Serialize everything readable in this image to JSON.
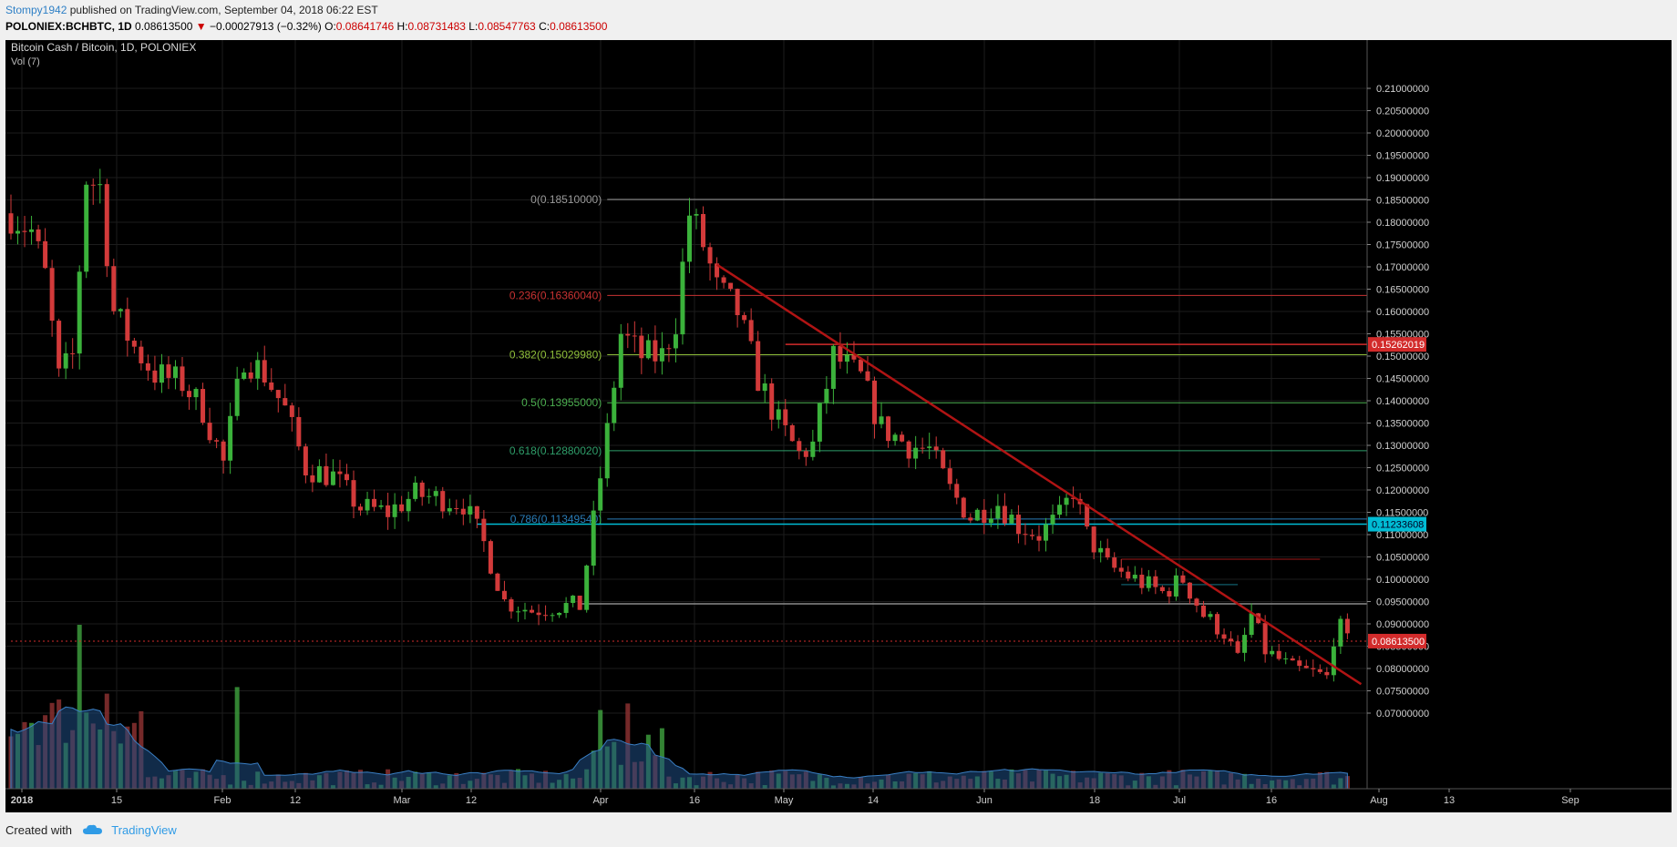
{
  "header": {
    "author": "Stompy1942",
    "published_text": "published on TradingView.com, September 04, 2018 06:22 EST",
    "symbol": "POLONIEX:BCHBTC, 1D",
    "last": "0.08613500",
    "change_arrow": "▼",
    "change": "−0.00027913 (−0.32%)",
    "o_label": "O:",
    "o": "0.08641746",
    "h_label": "H:",
    "h": "0.08731483",
    "l_label": "L:",
    "l": "0.08547763",
    "c_label": "C:",
    "c": "0.08613500"
  },
  "legend": {
    "title": "Bitcoin Cash / Bitcoin, 1D, POLONIEX",
    "volume": "Vol (7)"
  },
  "footer": {
    "created_with": "Created with",
    "brand": "TradingView"
  },
  "colors": {
    "up": "#3bb23b",
    "down": "#d23a3a",
    "background": "#000000",
    "trendline": "#b01414",
    "volume_ma": "#2b6fb0"
  },
  "chart_data": {
    "type": "candlestick",
    "symbol": "BCHBTC",
    "exchange": "POLONIEX",
    "interval": "1D",
    "ylim": [
      0.07,
      0.21
    ],
    "y_ticks": [
      "0.07000000",
      "0.07500000",
      "0.08000000",
      "0.08500000",
      "0.09000000",
      "0.09500000",
      "0.10000000",
      "0.10500000",
      "0.11000000",
      "0.11500000",
      "0.12000000",
      "0.12500000",
      "0.13000000",
      "0.13500000",
      "0.14000000",
      "0.14500000",
      "0.15000000",
      "0.15500000",
      "0.16000000",
      "0.16500000",
      "0.17000000",
      "0.17500000",
      "0.18000000",
      "0.18500000",
      "0.19000000",
      "0.19500000",
      "0.20000000",
      "0.20500000",
      "0.21000000"
    ],
    "x_ticks": [
      "2018",
      "15",
      "Feb",
      "12",
      "Mar",
      "12",
      "Apr",
      "16",
      "May",
      "14",
      "Jun",
      "18",
      "Jul",
      "16",
      "Aug",
      "13",
      "Sep"
    ],
    "price_path": [
      {
        "day": 0,
        "price": 0.182
      },
      {
        "day": 3,
        "price": 0.178
      },
      {
        "day": 5,
        "price": 0.168
      },
      {
        "day": 7,
        "price": 0.145
      },
      {
        "day": 9,
        "price": 0.15
      },
      {
        "day": 11,
        "price": 0.19
      },
      {
        "day": 13,
        "price": 0.188
      },
      {
        "day": 15,
        "price": 0.16
      },
      {
        "day": 18,
        "price": 0.152
      },
      {
        "day": 21,
        "price": 0.146
      },
      {
        "day": 25,
        "price": 0.144
      },
      {
        "day": 28,
        "price": 0.138
      },
      {
        "day": 31,
        "price": 0.126
      },
      {
        "day": 34,
        "price": 0.15
      },
      {
        "day": 37,
        "price": 0.146
      },
      {
        "day": 40,
        "price": 0.138
      },
      {
        "day": 43,
        "price": 0.125
      },
      {
        "day": 47,
        "price": 0.123
      },
      {
        "day": 51,
        "price": 0.116
      },
      {
        "day": 55,
        "price": 0.115
      },
      {
        "day": 59,
        "price": 0.119
      },
      {
        "day": 63,
        "price": 0.118
      },
      {
        "day": 66,
        "price": 0.117
      },
      {
        "day": 69,
        "price": 0.108
      },
      {
        "day": 72,
        "price": 0.095
      },
      {
        "day": 76,
        "price": 0.093
      },
      {
        "day": 80,
        "price": 0.094
      },
      {
        "day": 83,
        "price": 0.094
      },
      {
        "day": 85,
        "price": 0.113
      },
      {
        "day": 87,
        "price": 0.133
      },
      {
        "day": 89,
        "price": 0.155
      },
      {
        "day": 92,
        "price": 0.15
      },
      {
        "day": 95,
        "price": 0.15
      },
      {
        "day": 97,
        "price": 0.158
      },
      {
        "day": 99,
        "price": 0.182
      },
      {
        "day": 101,
        "price": 0.175
      },
      {
        "day": 103,
        "price": 0.165
      },
      {
        "day": 106,
        "price": 0.16
      },
      {
        "day": 109,
        "price": 0.145
      },
      {
        "day": 112,
        "price": 0.135
      },
      {
        "day": 115,
        "price": 0.128
      },
      {
        "day": 117,
        "price": 0.13
      },
      {
        "day": 120,
        "price": 0.15
      },
      {
        "day": 124,
        "price": 0.145
      },
      {
        "day": 127,
        "price": 0.134
      },
      {
        "day": 131,
        "price": 0.13
      },
      {
        "day": 134,
        "price": 0.129
      },
      {
        "day": 137,
        "price": 0.12
      },
      {
        "day": 140,
        "price": 0.114
      },
      {
        "day": 144,
        "price": 0.117
      },
      {
        "day": 147,
        "price": 0.112
      },
      {
        "day": 150,
        "price": 0.11
      },
      {
        "day": 153,
        "price": 0.114
      },
      {
        "day": 155,
        "price": 0.12
      },
      {
        "day": 157,
        "price": 0.11
      },
      {
        "day": 160,
        "price": 0.103
      },
      {
        "day": 164,
        "price": 0.1
      },
      {
        "day": 168,
        "price": 0.097
      },
      {
        "day": 171,
        "price": 0.1
      },
      {
        "day": 174,
        "price": 0.092
      },
      {
        "day": 177,
        "price": 0.088
      },
      {
        "day": 179,
        "price": 0.082
      },
      {
        "day": 181,
        "price": 0.092
      },
      {
        "day": 183,
        "price": 0.084
      },
      {
        "day": 187,
        "price": 0.08
      },
      {
        "day": 190,
        "price": 0.079
      },
      {
        "day": 192,
        "price": 0.078
      },
      {
        "day": 193,
        "price": 0.087
      },
      {
        "day": 194,
        "price": 0.089
      },
      {
        "day": 195,
        "price": 0.086
      }
    ],
    "fibonacci": [
      {
        "label": "0(0.18510000)",
        "level": 0.1851,
        "color": "#9a9a9a"
      },
      {
        "label": "0.236(0.16360040)",
        "level": 0.1636004,
        "color": "#c83232"
      },
      {
        "label": "0.382(0.15029980)",
        "level": 0.1502998,
        "color": "#8fbf3a"
      },
      {
        "label": "0.5(0.13955000)",
        "level": 0.13955,
        "color": "#4caf50"
      },
      {
        "label": "0.618(0.12880020)",
        "level": 0.1288002,
        "color": "#2f9e6a"
      },
      {
        "label": "0.786(0.11349540)",
        "level": 0.1134954,
        "color": "#2a7db8"
      }
    ],
    "trendline": {
      "from": {
        "day": 103,
        "price": 0.1705
      },
      "to": {
        "day": 197,
        "price": 0.0765
      }
    },
    "horizontal_lines": [
      {
        "price": 0.15262019,
        "label": "0.15262019",
        "color": "#d22b2b",
        "from_day": 113
      },
      {
        "price": 0.11233608,
        "label": "0.11233608",
        "color": "#00bcd4",
        "from_day": 68
      },
      {
        "price": 0.086135,
        "label": "0.08613500",
        "color": "#d22b2b",
        "from_day": 0,
        "dashed": true
      }
    ],
    "extra_lines": [
      {
        "price": 0.0945,
        "from_day": 83,
        "to_day": 197,
        "color": "#8a8a8a"
      },
      {
        "price": 0.1045,
        "from_day": 162,
        "to_day": 191,
        "color": "#6a1010"
      },
      {
        "price": 0.0988,
        "from_day": 162,
        "to_day": 179,
        "color": "#0e4e5a"
      }
    ],
    "volume_spikes": [
      {
        "day": 10,
        "value": 1.0
      },
      {
        "day": 14,
        "value": 0.58
      },
      {
        "day": 33,
        "value": 0.62
      },
      {
        "day": 86,
        "value": 0.48
      },
      {
        "day": 90,
        "value": 0.52
      }
    ],
    "current_price": "0.08613500"
  }
}
